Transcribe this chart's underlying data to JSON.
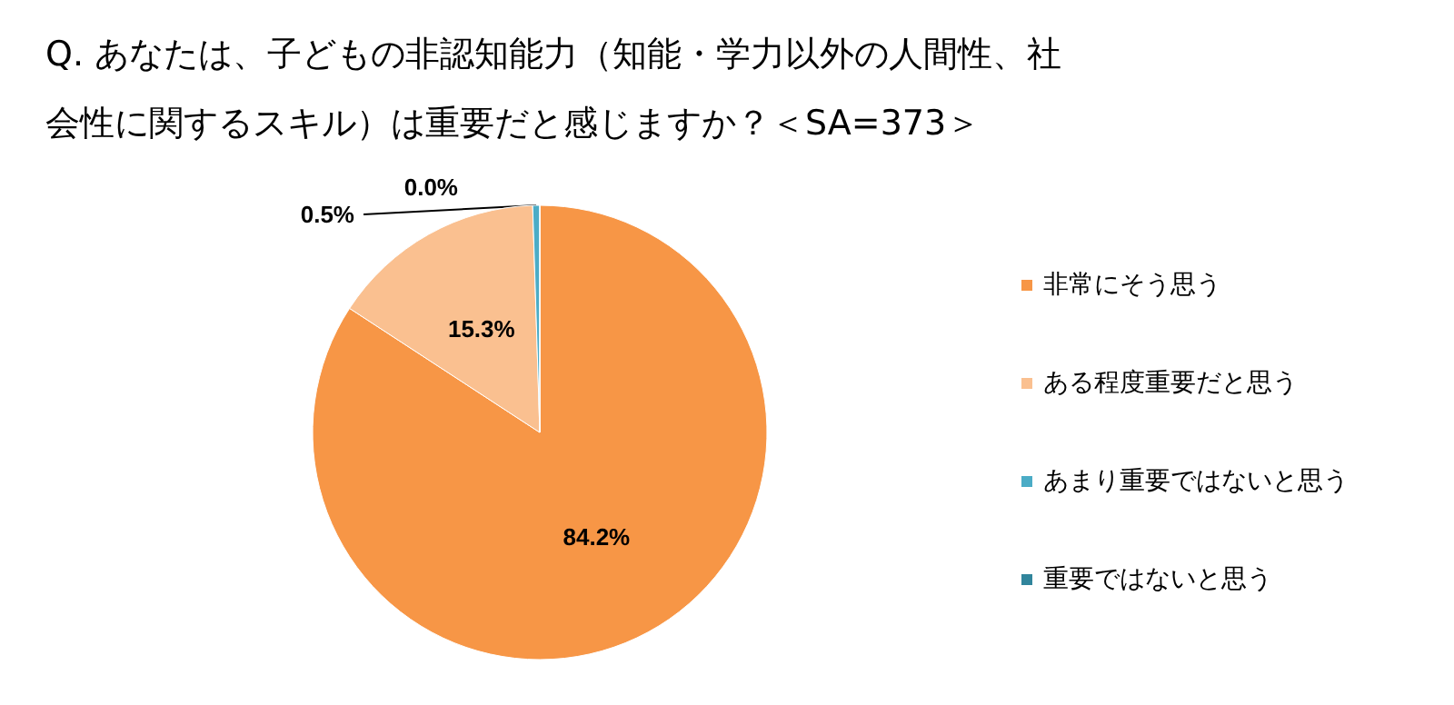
{
  "chart_data": {
    "type": "pie",
    "title": "Q. あなたは、子どもの非認知能力（知能・学力以外の人間性、社会性に関するスキル）は重要だと感じますか？＜SA=373＞",
    "categories": [
      "非常にそう思う",
      "ある程度重要だと思う",
      "あまり重要ではないと思う",
      "重要ではないと思う"
    ],
    "values": [
      84.2,
      15.3,
      0.5,
      0.0
    ],
    "colors": [
      "#f79646",
      "#fac090",
      "#4bacc6",
      "#31859c"
    ],
    "value_labels": [
      "84.2%",
      "15.3%",
      "0.5%",
      "0.0%"
    ],
    "legend": "right"
  }
}
